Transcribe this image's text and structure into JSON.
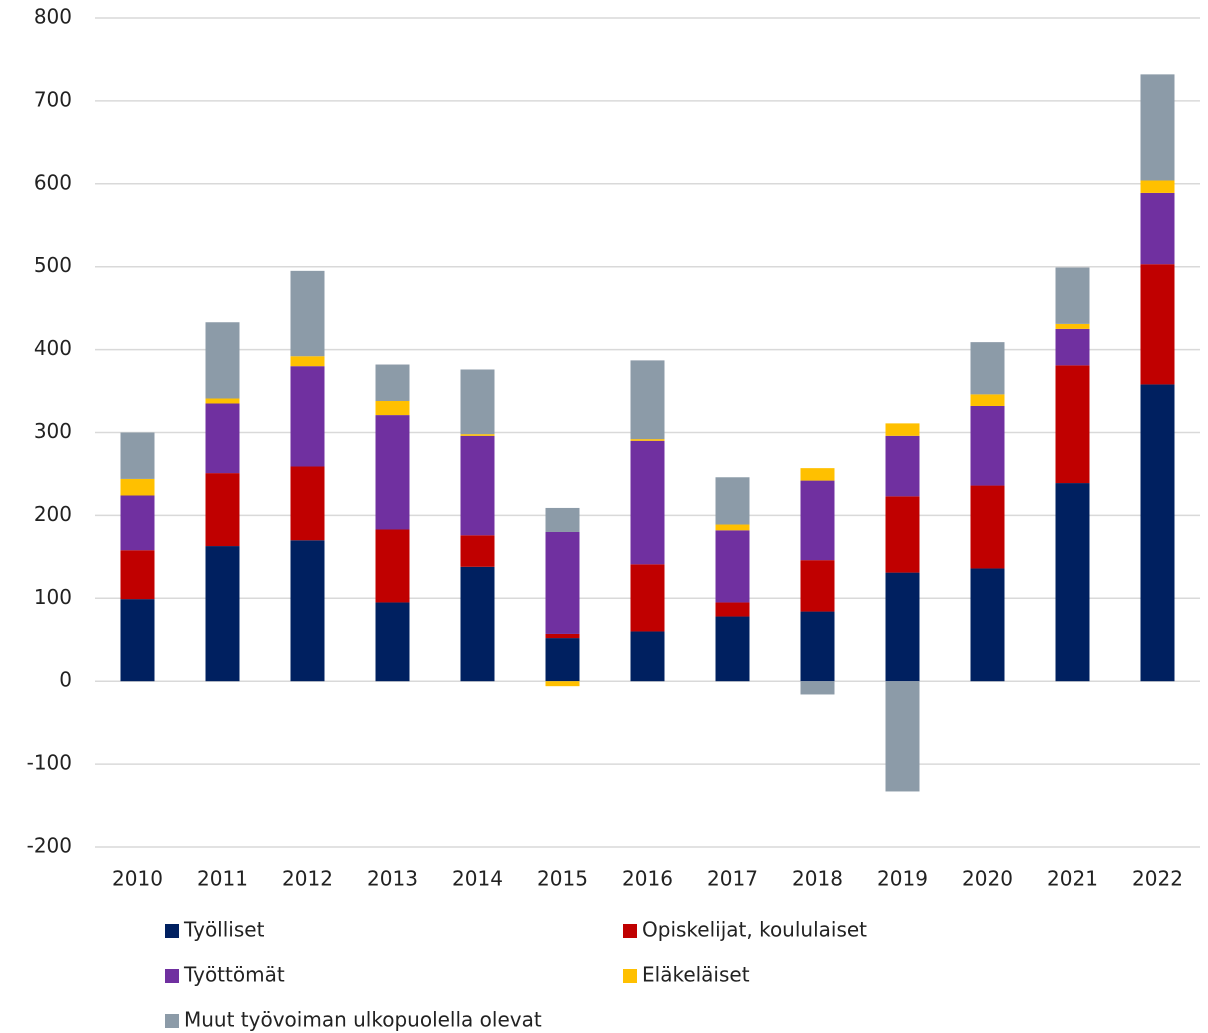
{
  "chart_data": {
    "type": "stacked_bar",
    "categories": [
      "2010",
      "2011",
      "2012",
      "2013",
      "2014",
      "2015",
      "2016",
      "2017",
      "2018",
      "2019",
      "2020",
      "2021",
      "2022"
    ],
    "series": [
      {
        "name": "Työlliset",
        "color": "#002060",
        "values": [
          99,
          163,
          170,
          95,
          138,
          52,
          60,
          78,
          84,
          131,
          136,
          239,
          358
        ]
      },
      {
        "name": "Opiskelijat, koululaiset",
        "color": "#c00000",
        "values": [
          59,
          88,
          89,
          88,
          38,
          5,
          81,
          17,
          62,
          92,
          100,
          142,
          145
        ]
      },
      {
        "name": "Työttömät",
        "color": "#7030a0",
        "values": [
          66,
          84,
          121,
          138,
          120,
          123,
          149,
          87,
          96,
          73,
          96,
          44,
          86
        ]
      },
      {
        "name": "Eläkeläiset",
        "color": "#ffc000",
        "values": [
          20,
          6,
          12,
          17,
          2,
          -6,
          2,
          7,
          15,
          15,
          14,
          6,
          15
        ]
      },
      {
        "name": "Muut työvoiman ulkopuolella olevat",
        "color": "#8c9ba8",
        "values": [
          56,
          92,
          103,
          44,
          78,
          29,
          95,
          57,
          -16,
          -133,
          63,
          68,
          128
        ]
      }
    ],
    "ylim": [
      -200,
      800
    ],
    "yticks": [
      -200,
      -100,
      0,
      100,
      200,
      300,
      400,
      500,
      600,
      700,
      800
    ],
    "grid": true
  }
}
